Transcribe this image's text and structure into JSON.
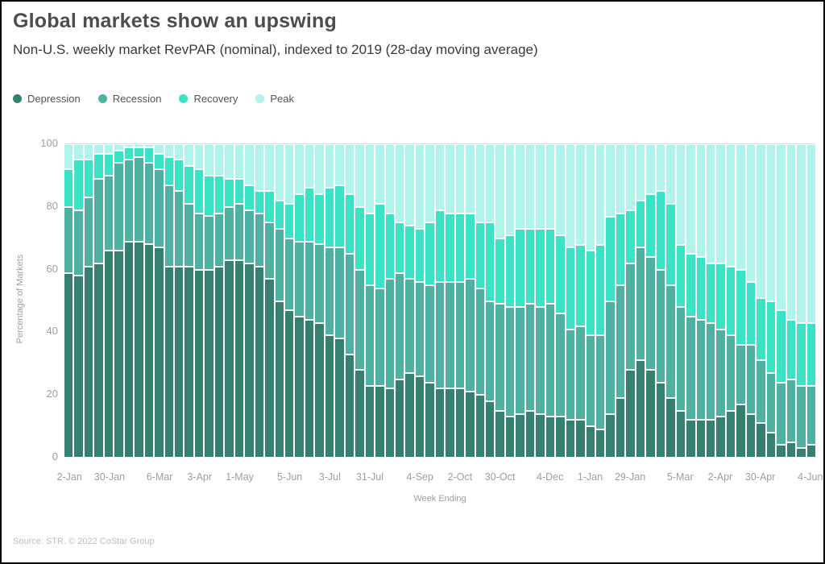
{
  "header": {
    "title": "Global markets show an upswing",
    "subtitle": "Non-U.S. weekly market RevPAR (nominal), indexed to 2019 (28-day moving average)"
  },
  "footer": {
    "source": "Source: STR. © 2022 CoStar Group"
  },
  "colors": {
    "depression": "#35806f",
    "recession": "#4fb1a1",
    "recovery": "#3be3c6",
    "peak": "#b0f4eb",
    "title_text": "#4d4d4d",
    "axis_text": "#9e9e9e"
  },
  "chart_data": {
    "type": "bar",
    "stacked": true,
    "unit": "percent_of_markets",
    "title": "Global markets show an upswing",
    "subtitle": "Non-U.S. weekly market RevPAR (nominal), indexed to 2019 (28-day moving average)",
    "xlabel": "Week Ending",
    "ylabel": "Percentage of Markets",
    "ylim": [
      0,
      100
    ],
    "yticks": [
      0,
      20,
      40,
      60,
      80,
      100
    ],
    "grid": false,
    "legend_position": "top-left",
    "n_bars": 75,
    "x_tick_labels": [
      "2-Jan",
      "30-Jan",
      "6-Mar",
      "3-Apr",
      "1-May",
      "5-Jun",
      "3-Jul",
      "31-Jul",
      "4-Sep",
      "2-Oct",
      "30-Oct",
      "4-Dec",
      "1-Jan",
      "29-Jan",
      "5-Mar",
      "2-Apr",
      "30-Apr",
      "4-Jun"
    ],
    "x_tick_positions": [
      0,
      4,
      9,
      13,
      17,
      22,
      26,
      30,
      35,
      39,
      43,
      48,
      52,
      56,
      61,
      65,
      69,
      74
    ],
    "series": [
      {
        "name": "Depression",
        "color": "#35806f",
        "values": [
          59,
          58,
          61,
          62,
          66,
          66,
          69,
          69,
          68,
          67,
          61,
          61,
          61,
          60,
          60,
          61,
          63,
          63,
          62,
          61,
          57,
          50,
          47,
          45,
          44,
          43,
          39,
          38,
          33,
          28,
          23,
          23,
          22,
          25,
          27,
          26,
          24,
          22,
          22,
          22,
          21,
          20,
          18,
          15,
          13,
          14,
          15,
          14,
          13,
          13,
          12,
          12,
          10,
          9,
          14,
          19,
          28,
          31,
          28,
          24,
          19,
          15,
          12,
          12,
          12,
          13,
          15,
          17,
          14,
          11,
          8,
          4,
          5,
          3,
          4
        ]
      },
      {
        "name": "Recession",
        "color": "#4fb1a1",
        "values": [
          21,
          21,
          22,
          27,
          24,
          28,
          26,
          27,
          26,
          25,
          26,
          24,
          20,
          18,
          17,
          17,
          17,
          18,
          17,
          17,
          18,
          23,
          23,
          24,
          25,
          25,
          28,
          29,
          32,
          32,
          32,
          31,
          35,
          34,
          30,
          30,
          31,
          34,
          34,
          34,
          36,
          34,
          32,
          34,
          35,
          34,
          34,
          34,
          36,
          33,
          29,
          30,
          29,
          30,
          36,
          36,
          34,
          36,
          36,
          36,
          36,
          33,
          33,
          32,
          31,
          28,
          24,
          19,
          22,
          20,
          19,
          20,
          20,
          20,
          19
        ]
      },
      {
        "name": "Recovery",
        "color": "#3be3c6",
        "values": [
          12,
          16,
          12,
          8,
          7,
          4,
          4,
          3,
          5,
          5,
          9,
          10,
          12,
          14,
          13,
          12,
          9,
          8,
          8,
          7,
          10,
          9,
          11,
          15,
          17,
          16,
          19,
          20,
          19,
          20,
          23,
          27,
          21,
          16,
          17,
          17,
          20,
          23,
          22,
          22,
          21,
          21,
          25,
          21,
          23,
          25,
          24,
          25,
          24,
          25,
          26,
          26,
          27,
          29,
          27,
          23,
          17,
          15,
          20,
          25,
          26,
          20,
          20,
          20,
          19,
          21,
          22,
          24,
          20,
          20,
          23,
          23,
          19,
          20,
          20
        ]
      },
      {
        "name": "Peak",
        "color": "#b0f4eb",
        "values": [
          8,
          5,
          5,
          3,
          3,
          2,
          1,
          1,
          1,
          3,
          4,
          5,
          7,
          8,
          10,
          10,
          11,
          11,
          13,
          15,
          15,
          18,
          19,
          16,
          14,
          16,
          14,
          13,
          16,
          20,
          22,
          19,
          22,
          25,
          26,
          27,
          25,
          21,
          22,
          22,
          22,
          25,
          25,
          30,
          29,
          27,
          27,
          27,
          27,
          29,
          33,
          32,
          34,
          32,
          23,
          22,
          21,
          18,
          16,
          15,
          19,
          32,
          35,
          36,
          38,
          38,
          39,
          40,
          44,
          49,
          50,
          53,
          56,
          57,
          57
        ]
      }
    ]
  }
}
